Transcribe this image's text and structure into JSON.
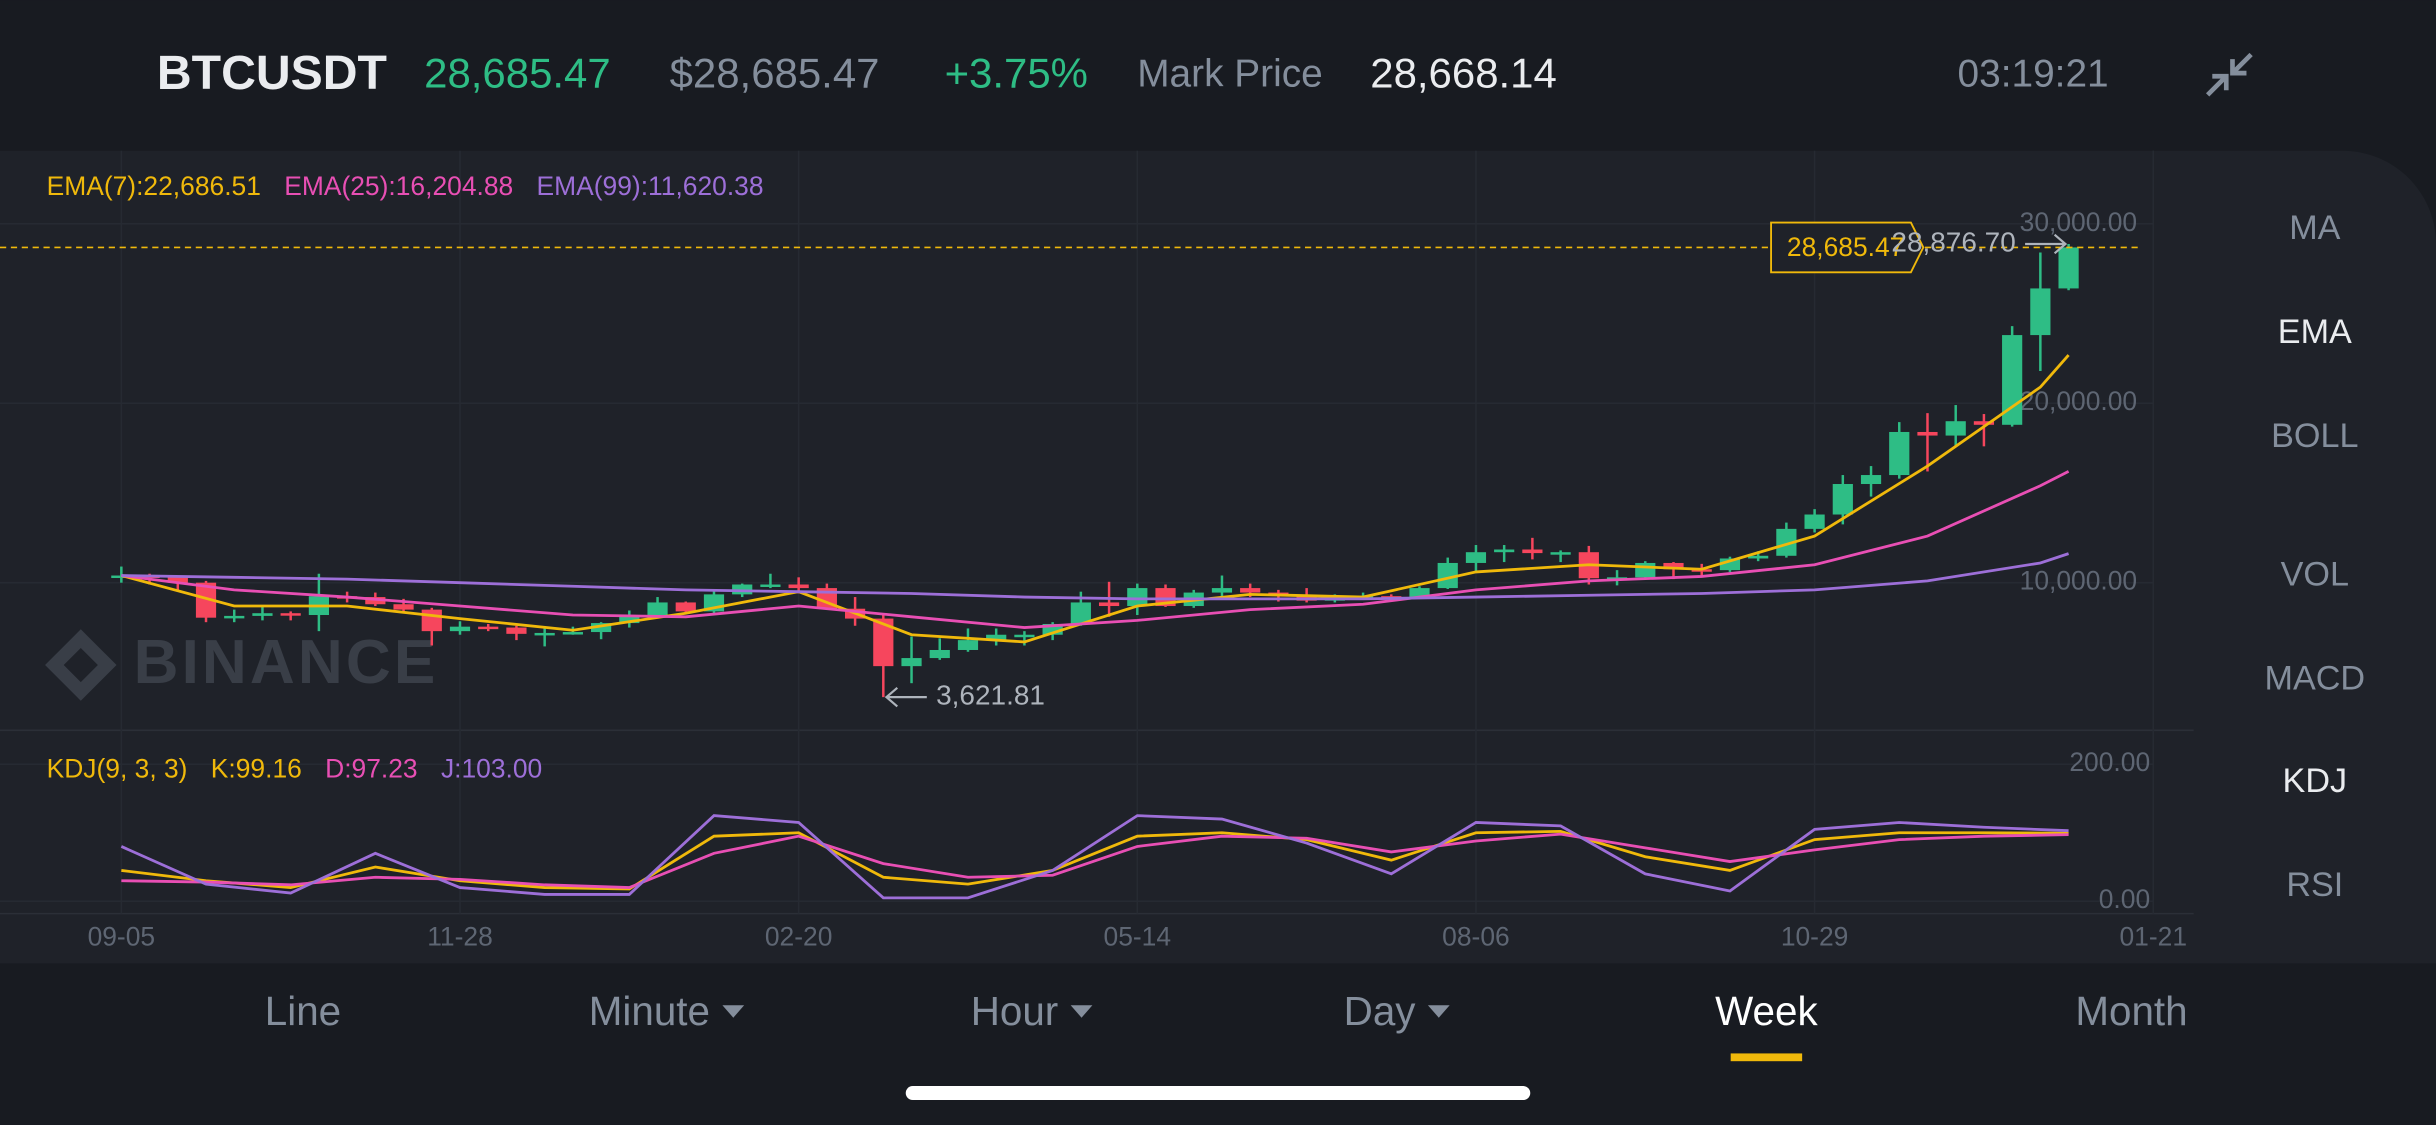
{
  "header": {
    "symbol": "BTCUSDT",
    "last_price": "28,685.47",
    "usd_price": "$28,685.47",
    "change": "+3.75%",
    "mark_price_label": "Mark Price",
    "mark_price": "28,668.14",
    "time": "03:19:21"
  },
  "watermark": "BINANCE",
  "indicator_menu": [
    {
      "label": "MA",
      "active": false
    },
    {
      "label": "EMA",
      "active": true
    },
    {
      "label": "BOLL",
      "active": false
    },
    {
      "label": "VOL",
      "active": false
    },
    {
      "label": "MACD",
      "active": false
    },
    {
      "label": "KDJ",
      "active": true
    },
    {
      "label": "RSI",
      "active": false
    }
  ],
  "intervals": [
    {
      "label": "Line",
      "dropdown": false,
      "active": false
    },
    {
      "label": "Minute",
      "dropdown": true,
      "active": false
    },
    {
      "label": "Hour",
      "dropdown": true,
      "active": false
    },
    {
      "label": "Day",
      "dropdown": true,
      "active": false
    },
    {
      "label": "Week",
      "dropdown": false,
      "active": true
    },
    {
      "label": "Month",
      "dropdown": false,
      "active": false
    }
  ],
  "chart_data": [
    {
      "type": "candlestick",
      "up_color": "#2ebd85",
      "down_color": "#f6465d",
      "open": [
        10300,
        10400,
        10300,
        10000,
        8050,
        8150,
        8300,
        8200,
        9250,
        9200,
        8800,
        8500,
        7300,
        7550,
        7500,
        7150,
        7200,
        7250,
        7750,
        8200,
        8900,
        8400,
        9350,
        9900,
        9900,
        9700,
        8550,
        8000,
        5350,
        5800,
        6250,
        6800,
        7100,
        7100,
        7700,
        8900,
        8700,
        9700,
        8700,
        9450,
        9700,
        9450,
        9300,
        9000,
        9250,
        9250,
        9200,
        9700,
        11100,
        11700,
        11850,
        11650,
        11700,
        10250,
        10300,
        11100,
        10750,
        10700,
        11350,
        11500,
        13000,
        13800,
        15500,
        16000,
        18400,
        18200,
        19000,
        18800,
        23800,
        26400
      ],
      "high": [
        10900,
        10500,
        10400,
        10100,
        8500,
        8700,
        8400,
        10500,
        9500,
        9450,
        9100,
        8600,
        7850,
        7700,
        7600,
        7500,
        7550,
        7800,
        8450,
        9200,
        8950,
        9550,
        9950,
        10500,
        10300,
        9950,
        9200,
        8200,
        7000,
        6900,
        7450,
        7450,
        7300,
        7800,
        9500,
        10050,
        9950,
        9900,
        9600,
        10400,
        9950,
        9600,
        9700,
        9350,
        9450,
        9350,
        9800,
        11400,
        12100,
        12100,
        12500,
        11800,
        12050,
        10700,
        11200,
        11150,
        11050,
        11450,
        11750,
        13350,
        14100,
        16000,
        16500,
        18950,
        19450,
        19900,
        19400,
        24300,
        28400,
        28876.7
      ],
      "low": [
        10000,
        9900,
        9600,
        7800,
        7800,
        7900,
        7900,
        7300,
        8900,
        8700,
        8400,
        6500,
        7100,
        7300,
        6800,
        6450,
        7100,
        6850,
        7500,
        8100,
        8250,
        8300,
        9200,
        9700,
        9400,
        8500,
        7600,
        3621.81,
        4400,
        5700,
        6150,
        6500,
        6500,
        6800,
        7600,
        8100,
        8200,
        8650,
        8600,
        9200,
        9200,
        8950,
        8900,
        8900,
        9050,
        9100,
        9100,
        9650,
        10600,
        11150,
        11300,
        11150,
        9900,
        9850,
        10250,
        10200,
        10400,
        10600,
        11200,
        11400,
        12800,
        13250,
        14800,
        15800,
        16200,
        17600,
        17600,
        18700,
        21800,
        26300
      ],
      "close": [
        10400,
        10300,
        10000,
        8050,
        8150,
        8300,
        8200,
        9250,
        9200,
        8800,
        8500,
        7300,
        7550,
        7500,
        7150,
        7200,
        7250,
        7750,
        8200,
        8900,
        8400,
        9350,
        9900,
        9900,
        9700,
        8550,
        8000,
        5350,
        5800,
        6250,
        6800,
        7100,
        7100,
        7700,
        8900,
        8700,
        9700,
        8700,
        9450,
        9700,
        9450,
        9300,
        9000,
        9250,
        9250,
        9200,
        9700,
        11100,
        11700,
        11850,
        11650,
        11700,
        10250,
        10300,
        11100,
        10750,
        10700,
        11350,
        11500,
        13000,
        13800,
        15500,
        16000,
        18400,
        18200,
        19000,
        18800,
        23800,
        26400,
        28685.47
      ],
      "series": [
        {
          "name": "EMA(7):22,686.51",
          "color": "#f0b90b",
          "x": [
            0,
            4,
            8,
            12,
            16,
            20,
            24,
            28,
            32,
            36,
            40,
            44,
            48,
            52,
            56,
            60,
            64,
            68,
            69
          ],
          "values": [
            10400,
            8700,
            8700,
            8000,
            7350,
            8300,
            9500,
            7100,
            6700,
            8700,
            9350,
            9200,
            10600,
            11000,
            10750,
            12600,
            16500,
            20900,
            22686.51
          ]
        },
        {
          "name": "EMA(25):16,204.88",
          "color": "#e84fb4",
          "x": [
            0,
            4,
            8,
            12,
            16,
            20,
            24,
            28,
            32,
            36,
            40,
            44,
            48,
            52,
            56,
            60,
            64,
            68,
            69
          ],
          "values": [
            10400,
            9600,
            9200,
            8700,
            8200,
            8100,
            8700,
            8100,
            7500,
            7900,
            8500,
            8800,
            9600,
            10100,
            10350,
            11000,
            12600,
            15400,
            16204.88
          ]
        },
        {
          "name": "EMA(99):11,620.38",
          "color": "#9d6fd8",
          "x": [
            0,
            4,
            8,
            12,
            16,
            20,
            24,
            28,
            32,
            36,
            40,
            44,
            48,
            52,
            56,
            60,
            64,
            68,
            69
          ],
          "values": [
            10400,
            10300,
            10200,
            10000,
            9800,
            9600,
            9500,
            9400,
            9200,
            9100,
            9100,
            9100,
            9200,
            9300,
            9400,
            9600,
            10100,
            11100,
            11620.38
          ]
        }
      ],
      "price_line": {
        "value": 28685.47,
        "label": "28,685.47",
        "color": "#f0b90b"
      },
      "annotations": [
        {
          "text": "3,621.81",
          "x": 27,
          "y": 3621.81,
          "side": "right"
        },
        {
          "text": "28,876.70",
          "x": 69,
          "y": 28876.7,
          "side": "left"
        }
      ],
      "xlim": [
        -4.3,
        72
      ],
      "xticks": [
        {
          "value": 0,
          "label": "09-05"
        },
        {
          "value": 12,
          "label": "11-28"
        },
        {
          "value": 24,
          "label": "02-20"
        },
        {
          "value": 36,
          "label": "05-14"
        },
        {
          "value": 48,
          "label": "08-06"
        },
        {
          "value": 60,
          "label": "10-29"
        },
        {
          "value": 72,
          "label": "01-21"
        }
      ],
      "ylim": [
        1775,
        34070
      ],
      "yticks": [
        {
          "value": 10000,
          "label": "10,000.00"
        },
        {
          "value": 20000,
          "label": "20,000.00"
        },
        {
          "value": 30000,
          "label": "30,000.00"
        }
      ],
      "grid": true
    },
    {
      "type": "line",
      "title": "KDJ(9, 3, 3)",
      "series": [
        {
          "name": "K:99.16",
          "color": "#f0b90b",
          "x": [
            0,
            3,
            6,
            9,
            12,
            15,
            18,
            21,
            24,
            27,
            30,
            33,
            36,
            39,
            42,
            45,
            48,
            51,
            54,
            57,
            60,
            63,
            66,
            69
          ],
          "values": [
            45,
            30,
            20,
            50,
            30,
            20,
            18,
            95,
            100,
            35,
            25,
            45,
            95,
            100,
            90,
            60,
            100,
            102,
            65,
            45,
            90,
            100,
            100,
            99.16
          ]
        },
        {
          "name": "D:97.23",
          "color": "#e84fb4",
          "x": [
            0,
            3,
            6,
            9,
            12,
            15,
            18,
            21,
            24,
            27,
            30,
            33,
            36,
            39,
            42,
            45,
            48,
            51,
            54,
            57,
            60,
            63,
            66,
            69
          ],
          "values": [
            30,
            28,
            24,
            35,
            32,
            24,
            20,
            70,
            95,
            55,
            35,
            38,
            80,
            95,
            92,
            72,
            88,
            98,
            78,
            58,
            75,
            90,
            95,
            97.23
          ]
        },
        {
          "name": "J:103.00",
          "color": "#9d6fd8",
          "x": [
            0,
            3,
            6,
            9,
            12,
            15,
            18,
            21,
            24,
            27,
            30,
            33,
            36,
            39,
            42,
            45,
            48,
            51,
            54,
            57,
            60,
            63,
            66,
            69
          ],
          "values": [
            80,
            25,
            12,
            70,
            20,
            10,
            10,
            125,
            115,
            5,
            5,
            45,
            125,
            120,
            85,
            40,
            115,
            110,
            40,
            15,
            105,
            115,
            108,
            103.0
          ]
        }
      ],
      "xlim": [
        -4.3,
        72
      ],
      "ylim": [
        -18,
        245
      ],
      "yticks": [
        {
          "value": 0,
          "label": "0.00"
        },
        {
          "value": 200,
          "label": "200.00"
        }
      ],
      "grid": true
    }
  ]
}
